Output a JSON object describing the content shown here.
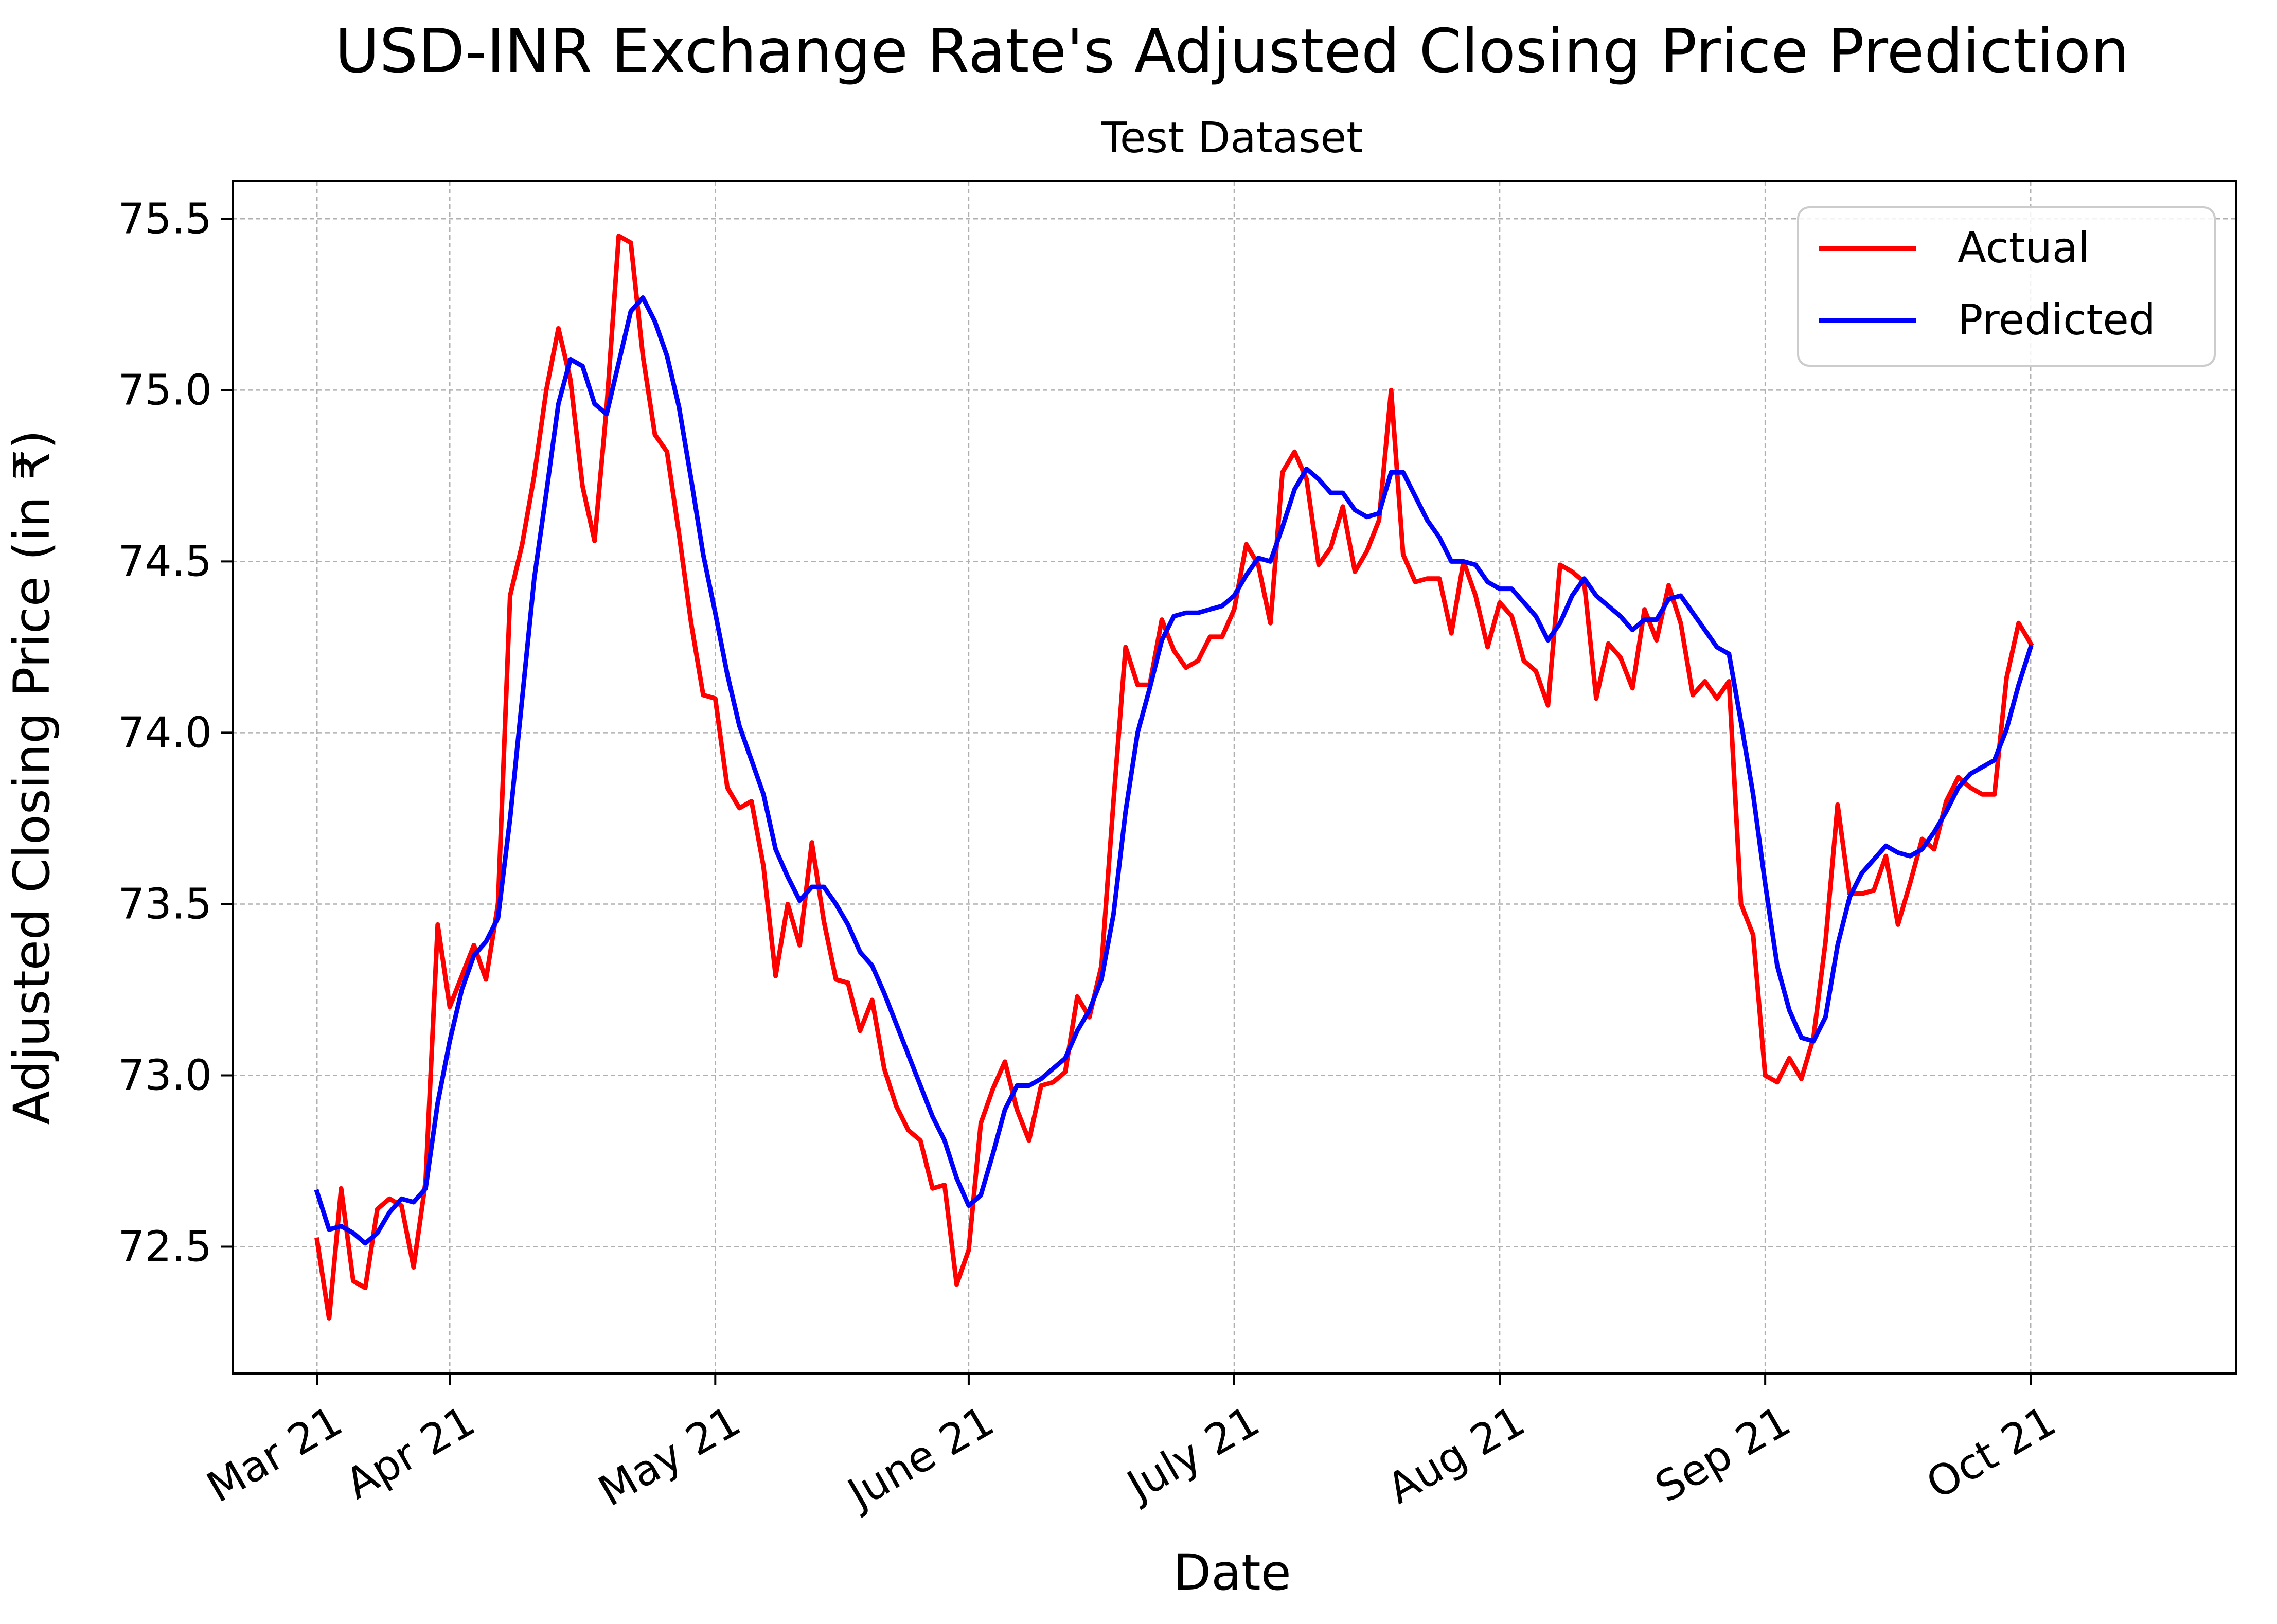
{
  "chart_data": {
    "type": "line",
    "title": "USD-INR Exchange Rate's Adjusted Closing Price Prediction",
    "subtitle": "Test Dataset",
    "xlabel": "Date",
    "ylabel": "Adjusted Closing Price (in ₹)",
    "xlim": [
      -7,
      159
    ],
    "ylim": [
      72.13,
      75.61
    ],
    "grid": true,
    "legend_position": "top-right",
    "x_ticks": [
      {
        "label": "Mar 21",
        "value": 0
      },
      {
        "label": "Apr 21",
        "value": 11
      },
      {
        "label": "May 21",
        "value": 33
      },
      {
        "label": "June 21",
        "value": 54
      },
      {
        "label": "July 21",
        "value": 76
      },
      {
        "label": "Aug 21",
        "value": 98
      },
      {
        "label": "Sep 21",
        "value": 120
      },
      {
        "label": "Oct 21",
        "value": 142
      }
    ],
    "y_ticks": [
      72.5,
      73.0,
      73.5,
      74.0,
      74.5,
      75.0,
      75.5
    ],
    "series": [
      {
        "name": "Actual",
        "color": "#ff0000",
        "values": [
          72.52,
          72.29,
          72.67,
          72.4,
          72.38,
          72.61,
          72.64,
          72.62,
          72.44,
          72.69,
          73.44,
          73.2,
          73.29,
          73.38,
          73.28,
          73.5,
          74.4,
          74.55,
          74.75,
          75.0,
          75.18,
          75.03,
          74.72,
          74.56,
          74.95,
          75.45,
          75.43,
          75.1,
          74.87,
          74.82,
          74.58,
          74.32,
          74.11,
          74.1,
          73.84,
          73.78,
          73.8,
          73.61,
          73.29,
          73.5,
          73.38,
          73.68,
          73.45,
          73.28,
          73.27,
          73.13,
          73.22,
          73.02,
          72.91,
          72.84,
          72.81,
          72.67,
          72.68,
          72.39,
          72.49,
          72.86,
          72.96,
          73.04,
          72.9,
          72.81,
          72.97,
          72.98,
          73.01,
          73.23,
          73.17,
          73.32,
          73.8,
          74.25,
          74.14,
          74.14,
          74.33,
          74.24,
          74.19,
          74.21,
          74.28,
          74.28,
          74.36,
          74.55,
          74.49,
          74.32,
          74.76,
          74.82,
          74.74,
          74.49,
          74.54,
          74.66,
          74.47,
          74.53,
          74.62,
          75.0,
          74.52,
          74.44,
          74.45,
          74.45,
          74.29,
          74.5,
          74.4,
          74.25,
          74.38,
          74.34,
          74.21,
          74.18,
          74.08,
          74.49,
          74.47,
          74.44,
          74.1,
          74.26,
          74.22,
          74.13,
          74.36,
          74.27,
          74.43,
          74.32,
          74.11,
          74.15,
          74.1,
          74.15,
          73.5,
          73.41,
          73.0,
          72.98,
          73.05,
          72.99,
          73.11,
          73.39,
          73.79,
          73.53,
          73.53,
          73.54,
          73.64,
          73.44,
          73.56,
          73.69,
          73.66,
          73.8,
          73.87,
          73.84,
          73.82,
          73.82,
          74.16,
          74.32,
          74.26
        ]
      },
      {
        "name": "Predicted",
        "color": "#0000ff",
        "values": [
          72.66,
          72.55,
          72.56,
          72.54,
          72.51,
          72.54,
          72.6,
          72.64,
          72.63,
          72.67,
          72.92,
          73.1,
          73.25,
          73.35,
          73.39,
          73.46,
          73.75,
          74.1,
          74.45,
          74.7,
          74.96,
          75.09,
          75.07,
          74.96,
          74.93,
          75.08,
          75.23,
          75.27,
          75.2,
          75.1,
          74.95,
          74.74,
          74.52,
          74.35,
          74.17,
          74.02,
          73.92,
          73.82,
          73.66,
          73.58,
          73.51,
          73.55,
          73.55,
          73.5,
          73.44,
          73.36,
          73.32,
          73.24,
          73.15,
          73.06,
          72.97,
          72.88,
          72.81,
          72.7,
          72.62,
          72.65,
          72.77,
          72.9,
          72.97,
          72.97,
          72.99,
          73.02,
          73.05,
          73.13,
          73.19,
          73.28,
          73.47,
          73.77,
          74.0,
          74.13,
          74.27,
          74.34,
          74.35,
          74.35,
          74.36,
          74.37,
          74.4,
          74.46,
          74.51,
          74.5,
          74.6,
          74.71,
          74.77,
          74.74,
          74.7,
          74.7,
          74.65,
          74.63,
          74.64,
          74.76,
          74.76,
          74.69,
          74.62,
          74.57,
          74.5,
          74.5,
          74.49,
          74.44,
          74.42,
          74.42,
          74.38,
          74.34,
          74.27,
          74.32,
          74.4,
          74.45,
          74.4,
          74.37,
          74.34,
          74.3,
          74.33,
          74.33,
          74.39,
          74.4,
          74.35,
          74.3,
          74.25,
          74.23,
          74.03,
          73.82,
          73.56,
          73.32,
          73.19,
          73.11,
          73.1,
          73.17,
          73.38,
          73.52,
          73.59,
          73.63,
          73.67,
          73.65,
          73.64,
          73.66,
          73.71,
          73.77,
          73.84,
          73.88,
          73.9,
          73.92,
          74.01,
          74.14,
          74.25
        ]
      }
    ]
  }
}
